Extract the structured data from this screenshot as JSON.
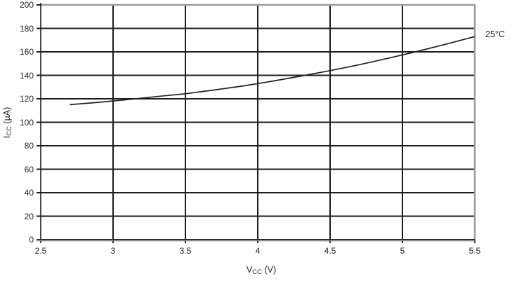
{
  "chart_data": {
    "type": "line",
    "title": "",
    "xlabel_main": "V",
    "xlabel_sub": "CC",
    "xlabel_rest": " (V)",
    "ylabel_main": "I",
    "ylabel_sub": "CC",
    "ylabel_rest": " (µA)",
    "series_label": "25°C",
    "xlim": [
      2.5,
      5.5
    ],
    "ylim": [
      0,
      200
    ],
    "x_ticks": [
      2.5,
      3,
      3.5,
      4,
      4.5,
      5,
      5.5
    ],
    "x_tick_labels": [
      "2.5",
      "3",
      "3.5",
      "4",
      "4.5",
      "5",
      "5.5"
    ],
    "y_ticks": [
      0,
      20,
      40,
      60,
      80,
      100,
      120,
      140,
      160,
      180,
      200
    ],
    "y_tick_labels": [
      "0",
      "20",
      "40",
      "60",
      "80",
      "100",
      "120",
      "140",
      "160",
      "180",
      "200"
    ],
    "grid": true,
    "legend_position": "right-of-curve-end",
    "series": [
      {
        "name": "25°C",
        "x": [
          2.7,
          2.9,
          3.1,
          3.3,
          3.5,
          3.7,
          3.9,
          4.1,
          4.3,
          4.5,
          4.7,
          4.9,
          5.1,
          5.3,
          5.5
        ],
        "y": [
          115,
          117,
          119.3,
          121.9,
          124.3,
          127.5,
          131,
          135,
          139.4,
          144,
          149,
          154.5,
          160.3,
          166.5,
          173
        ]
      }
    ],
    "colors": {
      "line": "#231f20",
      "grid": "#1d1d1d",
      "axis": "#3a3a3a",
      "border_gray": "#9a9a9a",
      "text": "#231f20",
      "background": "#ffffff"
    }
  }
}
